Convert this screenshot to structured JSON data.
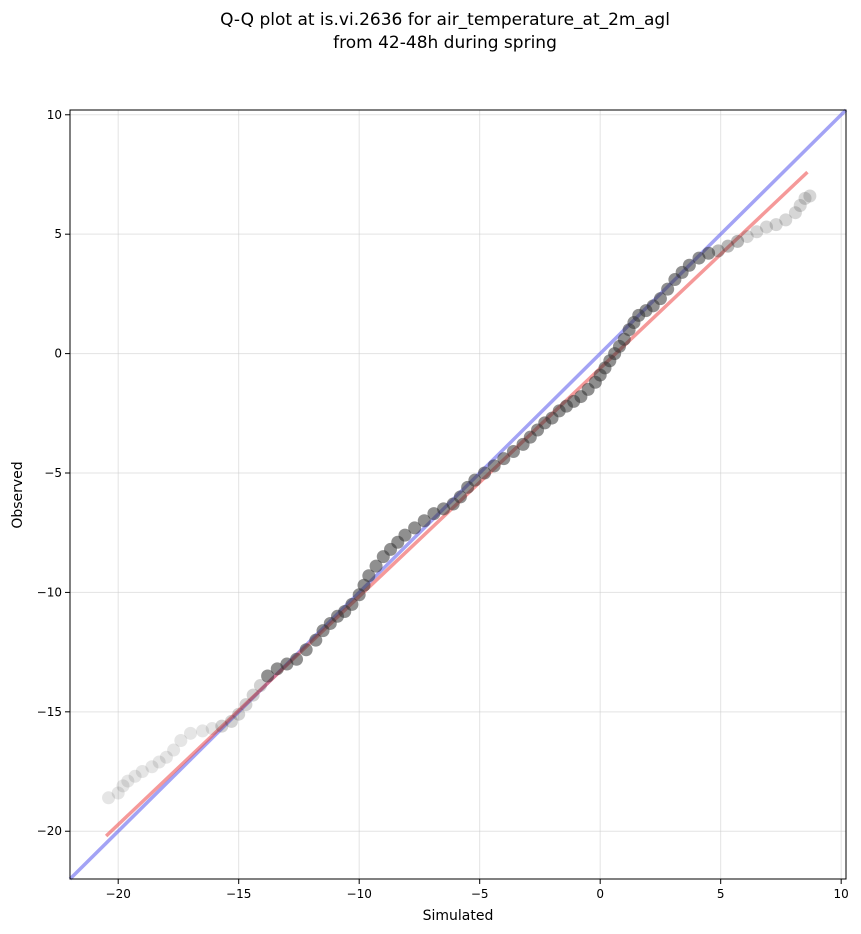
{
  "chart_data": {
    "type": "scatter",
    "title": [
      "Q-Q plot at is.vi.2636 for air_temperature_at_2m_agl",
      "from 42-48h during spring"
    ],
    "xlabel": "Simulated",
    "ylabel": "Observed",
    "xlim": [
      -22,
      10.2
    ],
    "ylim": [
      -22,
      10.2
    ],
    "grid": true,
    "x_ticks": [
      -20,
      -15,
      -10,
      -5,
      0,
      5,
      10
    ],
    "y_ticks": [
      -20,
      -15,
      -10,
      -5,
      0,
      5,
      10
    ],
    "x_tick_labels": [
      "−20",
      "−15",
      "−10",
      "−5",
      "0",
      "5",
      "10"
    ],
    "y_tick_labels": [
      "−20",
      "−15",
      "−10",
      "−5",
      "0",
      "5",
      "10"
    ],
    "reference_line": {
      "points": [
        [
          -22,
          -22
        ],
        [
          10.2,
          10.2
        ]
      ],
      "color": "#6666ee"
    },
    "fit_line": {
      "points": [
        [
          -20.5,
          -20.2
        ],
        [
          8.6,
          7.6
        ]
      ],
      "color": "#ee5555"
    },
    "points_color": "#333333",
    "quantiles": [
      [
        -20.4,
        -18.6
      ],
      [
        -20.0,
        -18.4
      ],
      [
        -19.8,
        -18.1
      ],
      [
        -19.6,
        -17.9
      ],
      [
        -19.3,
        -17.7
      ],
      [
        -19.0,
        -17.5
      ],
      [
        -18.6,
        -17.3
      ],
      [
        -18.3,
        -17.1
      ],
      [
        -18.0,
        -16.9
      ],
      [
        -17.7,
        -16.6
      ],
      [
        -17.4,
        -16.2
      ],
      [
        -17.0,
        -15.9
      ],
      [
        -16.5,
        -15.8
      ],
      [
        -16.1,
        -15.7
      ],
      [
        -15.7,
        -15.6
      ],
      [
        -15.3,
        -15.4
      ],
      [
        -15.0,
        -15.1
      ],
      [
        -14.7,
        -14.7
      ],
      [
        -14.4,
        -14.3
      ],
      [
        -14.1,
        -13.9
      ],
      [
        -13.8,
        -13.5
      ],
      [
        -13.4,
        -13.2
      ],
      [
        -13.0,
        -13.0
      ],
      [
        -12.6,
        -12.8
      ],
      [
        -12.2,
        -12.4
      ],
      [
        -11.8,
        -12.0
      ],
      [
        -11.5,
        -11.6
      ],
      [
        -11.2,
        -11.3
      ],
      [
        -10.9,
        -11.0
      ],
      [
        -10.6,
        -10.8
      ],
      [
        -10.3,
        -10.5
      ],
      [
        -10.0,
        -10.1
      ],
      [
        -9.8,
        -9.7
      ],
      [
        -9.6,
        -9.3
      ],
      [
        -9.3,
        -8.9
      ],
      [
        -9.0,
        -8.5
      ],
      [
        -8.7,
        -8.2
      ],
      [
        -8.4,
        -7.9
      ],
      [
        -8.1,
        -7.6
      ],
      [
        -7.7,
        -7.3
      ],
      [
        -7.3,
        -7.0
      ],
      [
        -6.9,
        -6.7
      ],
      [
        -6.5,
        -6.5
      ],
      [
        -6.1,
        -6.3
      ],
      [
        -5.8,
        -6.0
      ],
      [
        -5.5,
        -5.6
      ],
      [
        -5.2,
        -5.3
      ],
      [
        -4.8,
        -5.0
      ],
      [
        -4.4,
        -4.7
      ],
      [
        -4.0,
        -4.4
      ],
      [
        -3.6,
        -4.1
      ],
      [
        -3.2,
        -3.8
      ],
      [
        -2.9,
        -3.5
      ],
      [
        -2.6,
        -3.2
      ],
      [
        -2.3,
        -2.9
      ],
      [
        -2.0,
        -2.7
      ],
      [
        -1.7,
        -2.4
      ],
      [
        -1.4,
        -2.2
      ],
      [
        -1.1,
        -2.0
      ],
      [
        -0.8,
        -1.8
      ],
      [
        -0.5,
        -1.5
      ],
      [
        -0.2,
        -1.2
      ],
      [
        0.0,
        -0.9
      ],
      [
        0.2,
        -0.6
      ],
      [
        0.4,
        -0.3
      ],
      [
        0.6,
        0.0
      ],
      [
        0.8,
        0.3
      ],
      [
        1.0,
        0.6
      ],
      [
        1.2,
        1.0
      ],
      [
        1.4,
        1.3
      ],
      [
        1.6,
        1.6
      ],
      [
        1.9,
        1.8
      ],
      [
        2.2,
        2.0
      ],
      [
        2.5,
        2.3
      ],
      [
        2.8,
        2.7
      ],
      [
        3.1,
        3.1
      ],
      [
        3.4,
        3.4
      ],
      [
        3.7,
        3.7
      ],
      [
        4.1,
        4.0
      ],
      [
        4.5,
        4.2
      ],
      [
        4.9,
        4.3
      ],
      [
        5.3,
        4.5
      ],
      [
        5.7,
        4.7
      ],
      [
        6.1,
        4.9
      ],
      [
        6.5,
        5.1
      ],
      [
        6.9,
        5.3
      ],
      [
        7.3,
        5.4
      ],
      [
        7.7,
        5.6
      ],
      [
        8.1,
        5.9
      ],
      [
        8.3,
        6.2
      ],
      [
        8.5,
        6.5
      ],
      [
        8.7,
        6.6
      ]
    ]
  }
}
